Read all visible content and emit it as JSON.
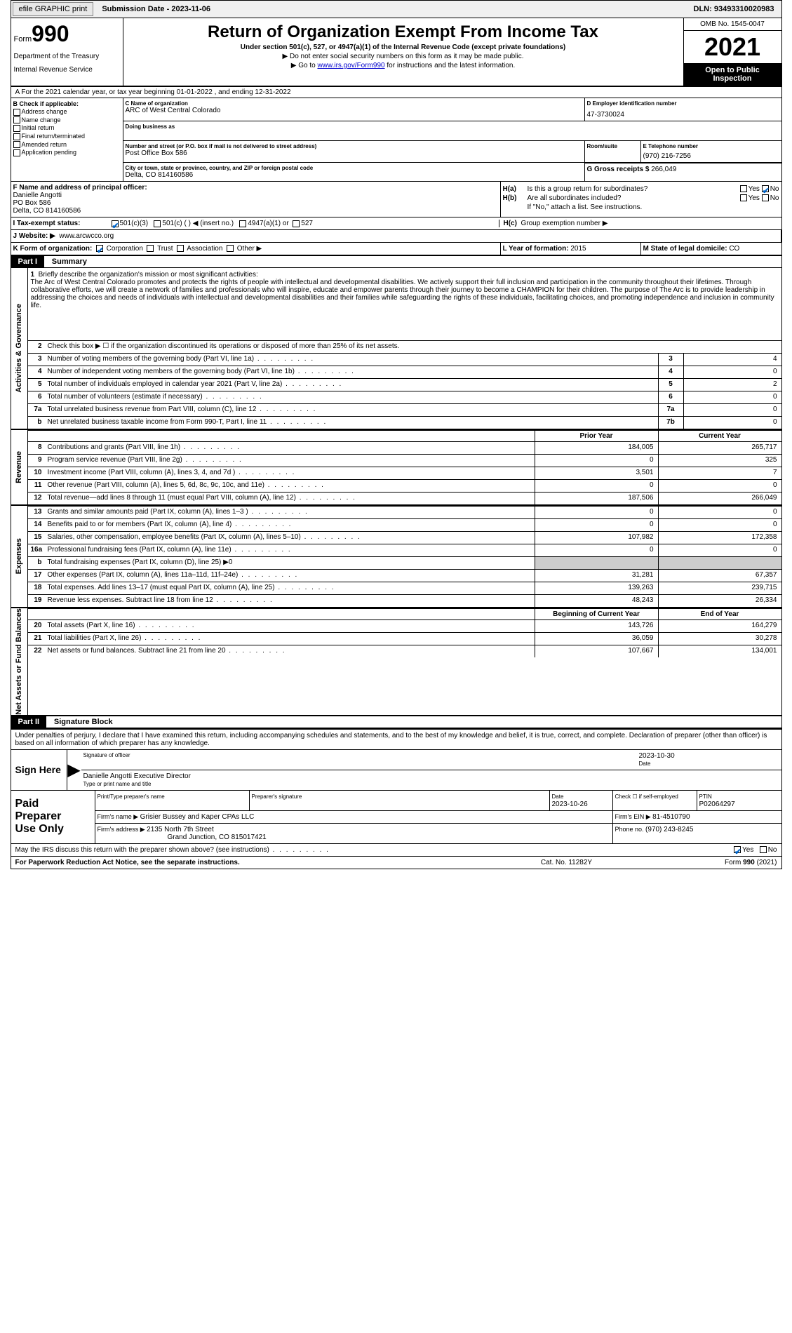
{
  "topbar": {
    "efile": "efile GRAPHIC print",
    "subdate_label": "Submission Date - ",
    "subdate": "2023-11-06",
    "dln_label": "DLN: ",
    "dln": "93493310020983"
  },
  "header": {
    "form_prefix": "Form",
    "form_number": "990",
    "title": "Return of Organization Exempt From Income Tax",
    "subtitle": "Under section 501(c), 527, or 4947(a)(1) of the Internal Revenue Code (except private foundations)",
    "note1": "▶ Do not enter social security numbers on this form as it may be made public.",
    "note2_prefix": "▶ Go to ",
    "note2_link": "www.irs.gov/Form990",
    "note2_suffix": " for instructions and the latest information.",
    "dept": "Department of the Treasury",
    "irs": "Internal Revenue Service",
    "omb": "OMB No. 1545-0047",
    "year": "2021",
    "inspect1": "Open to Public",
    "inspect2": "Inspection"
  },
  "section_a": "A For the 2021 calendar year, or tax year beginning 01-01-2022   , and ending 12-31-2022",
  "box_b": {
    "label": "B Check if applicable:",
    "items": [
      "Address change",
      "Name change",
      "Initial return",
      "Final return/terminated",
      "Amended return",
      "Application pending"
    ]
  },
  "box_c": {
    "label": "C Name of organization",
    "name": "ARC of West Central Colorado",
    "dba_label": "Doing business as",
    "addr_label": "Number and street (or P.O. box if mail is not delivered to street address)",
    "addr": "Post Office Box 586",
    "suite_label": "Room/suite",
    "city_label": "City or town, state or province, country, and ZIP or foreign postal code",
    "city": "Delta, CO  814160586"
  },
  "box_d": {
    "label": "D Employer identification number",
    "value": "47-3730024"
  },
  "box_e": {
    "label": "E Telephone number",
    "value": "(970) 216-7256"
  },
  "box_g": {
    "label": "G Gross receipts $ ",
    "value": "266,049"
  },
  "box_f": {
    "label": "F Name and address of principal officer:",
    "name": "Danielle Angotti",
    "addr1": "PO Box 586",
    "addr2": "Delta, CO  814160586"
  },
  "box_h": {
    "a_label": "H(a)",
    "a_text": "Is this a group return for subordinates?",
    "a_yes": "Yes",
    "a_no": "No",
    "b_label": "H(b)",
    "b_text": "Are all subordinates included?",
    "b_yes": "Yes",
    "b_no": "No",
    "b_note": "If \"No,\" attach a list. See instructions.",
    "c_label": "H(c)",
    "c_text": "Group exemption number ▶"
  },
  "row_i": {
    "label": "I  Tax-exempt status:",
    "opts": [
      "501(c)(3)",
      "501(c) (   ) ◀ (insert no.)",
      "4947(a)(1) or",
      "527"
    ]
  },
  "row_j": {
    "label": "J Website: ▶",
    "value": "www.arcwcco.org"
  },
  "row_k": {
    "label": "K Form of organization:",
    "opts": [
      "Corporation",
      "Trust",
      "Association",
      "Other ▶"
    ]
  },
  "box_l": {
    "label": "L Year of formation: ",
    "value": "2015"
  },
  "box_m": {
    "label": "M State of legal domicile: ",
    "value": "CO"
  },
  "part1": {
    "header": "Part I",
    "title": "Summary"
  },
  "tabs": {
    "ag": "Activities & Governance",
    "rev": "Revenue",
    "exp": "Expenses",
    "nab": "Net Assets or Fund Balances"
  },
  "mission": {
    "num": "1",
    "label": "Briefly describe the organization's mission or most significant activities:",
    "text": "The Arc of West Central Colorado promotes and protects the rights of people with intellectual and developmental disabilities. We actively support their full inclusion and participation in the community throughout their lifetimes. Through collaborative efforts, we will create a network of families and professionals who will inspire, educate and empower parents through their journey to become a CHAMPION for their children. The purpose of The Arc is to provide leadership in addressing the choices and needs of individuals with intellectual and developmental disabilities and their families while safeguarding the rights of these individuals, facilitating choices, and promoting independence and inclusion in community life."
  },
  "lines_ag": [
    {
      "num": "2",
      "text": "Check this box ▶ ☐ if the organization discontinued its operations or disposed of more than 25% of its net assets."
    },
    {
      "num": "3",
      "text": "Number of voting members of the governing body (Part VI, line 1a)",
      "box": "3",
      "val": "4"
    },
    {
      "num": "4",
      "text": "Number of independent voting members of the governing body (Part VI, line 1b)",
      "box": "4",
      "val": "0"
    },
    {
      "num": "5",
      "text": "Total number of individuals employed in calendar year 2021 (Part V, line 2a)",
      "box": "5",
      "val": "2"
    },
    {
      "num": "6",
      "text": "Total number of volunteers (estimate if necessary)",
      "box": "6",
      "val": "0"
    },
    {
      "num": "7a",
      "text": "Total unrelated business revenue from Part VIII, column (C), line 12",
      "box": "7a",
      "val": "0"
    },
    {
      "num": "b",
      "text": "Net unrelated business taxable income from Form 990-T, Part I, line 11",
      "box": "7b",
      "val": "0"
    }
  ],
  "col_headers": {
    "prior": "Prior Year",
    "current": "Current Year"
  },
  "lines_rev": [
    {
      "num": "8",
      "text": "Contributions and grants (Part VIII, line 1h)",
      "prior": "184,005",
      "current": "265,717"
    },
    {
      "num": "9",
      "text": "Program service revenue (Part VIII, line 2g)",
      "prior": "0",
      "current": "325"
    },
    {
      "num": "10",
      "text": "Investment income (Part VIII, column (A), lines 3, 4, and 7d )",
      "prior": "3,501",
      "current": "7"
    },
    {
      "num": "11",
      "text": "Other revenue (Part VIII, column (A), lines 5, 6d, 8c, 9c, 10c, and 11e)",
      "prior": "0",
      "current": "0"
    },
    {
      "num": "12",
      "text": "Total revenue—add lines 8 through 11 (must equal Part VIII, column (A), line 12)",
      "prior": "187,506",
      "current": "266,049"
    }
  ],
  "lines_exp": [
    {
      "num": "13",
      "text": "Grants and similar amounts paid (Part IX, column (A), lines 1–3 )",
      "prior": "0",
      "current": "0"
    },
    {
      "num": "14",
      "text": "Benefits paid to or for members (Part IX, column (A), line 4)",
      "prior": "0",
      "current": "0"
    },
    {
      "num": "15",
      "text": "Salaries, other compensation, employee benefits (Part IX, column (A), lines 5–10)",
      "prior": "107,982",
      "current": "172,358"
    },
    {
      "num": "16a",
      "text": "Professional fundraising fees (Part IX, column (A), line 11e)",
      "prior": "0",
      "current": "0"
    },
    {
      "num": "b",
      "text": "Total fundraising expenses (Part IX, column (D), line 25) ▶0",
      "shaded": true
    },
    {
      "num": "17",
      "text": "Other expenses (Part IX, column (A), lines 11a–11d, 11f–24e)",
      "prior": "31,281",
      "current": "67,357"
    },
    {
      "num": "18",
      "text": "Total expenses. Add lines 13–17 (must equal Part IX, column (A), line 25)",
      "prior": "139,263",
      "current": "239,715"
    },
    {
      "num": "19",
      "text": "Revenue less expenses. Subtract line 18 from line 12",
      "prior": "48,243",
      "current": "26,334"
    }
  ],
  "col_headers2": {
    "prior": "Beginning of Current Year",
    "current": "End of Year"
  },
  "lines_nab": [
    {
      "num": "20",
      "text": "Total assets (Part X, line 16)",
      "prior": "143,726",
      "current": "164,279"
    },
    {
      "num": "21",
      "text": "Total liabilities (Part X, line 26)",
      "prior": "36,059",
      "current": "30,278"
    },
    {
      "num": "22",
      "text": "Net assets or fund balances. Subtract line 21 from line 20",
      "prior": "107,667",
      "current": "134,001"
    }
  ],
  "part2": {
    "header": "Part II",
    "title": "Signature Block"
  },
  "sig": {
    "text": "Under penalties of perjury, I declare that I have examined this return, including accompanying schedules and statements, and to the best of my knowledge and belief, it is true, correct, and complete. Declaration of preparer (other than officer) is based on all information of which preparer has any knowledge.",
    "sign_label": "Sign Here",
    "sig_officer": "Signature of officer",
    "date_label": "Date",
    "date": "2023-10-30",
    "name": "Danielle Angotti  Executive Director",
    "name_label": "Type or print name and title"
  },
  "prep": {
    "label1": "Paid",
    "label2": "Preparer",
    "label3": "Use Only",
    "col1": "Print/Type preparer's name",
    "col2": "Preparer's signature",
    "col3_label": "Date",
    "col3": "2023-10-26",
    "col4_label": "Check ☐ if self-employed",
    "col5_label": "PTIN",
    "col5": "P02064297",
    "firm_label": "Firm's name     ▶ ",
    "firm": "Grisier Bussey and Kaper CPAs LLC",
    "ein_label": "Firm's EIN ▶ ",
    "ein": "81-4510790",
    "addr_label": "Firm's address ▶ ",
    "addr1": "2135 North 7th Street",
    "addr2": "Grand Junction, CO  815017421",
    "phone_label": "Phone no. ",
    "phone": "(970) 243-8245"
  },
  "discuss": {
    "text": "May the IRS discuss this return with the preparer shown above? (see instructions)",
    "yes": "Yes",
    "no": "No"
  },
  "footer": {
    "left": "For Paperwork Reduction Act Notice, see the separate instructions.",
    "mid": "Cat. No. 11282Y",
    "right_prefix": "Form ",
    "right_form": "990",
    "right_suffix": " (2021)"
  }
}
